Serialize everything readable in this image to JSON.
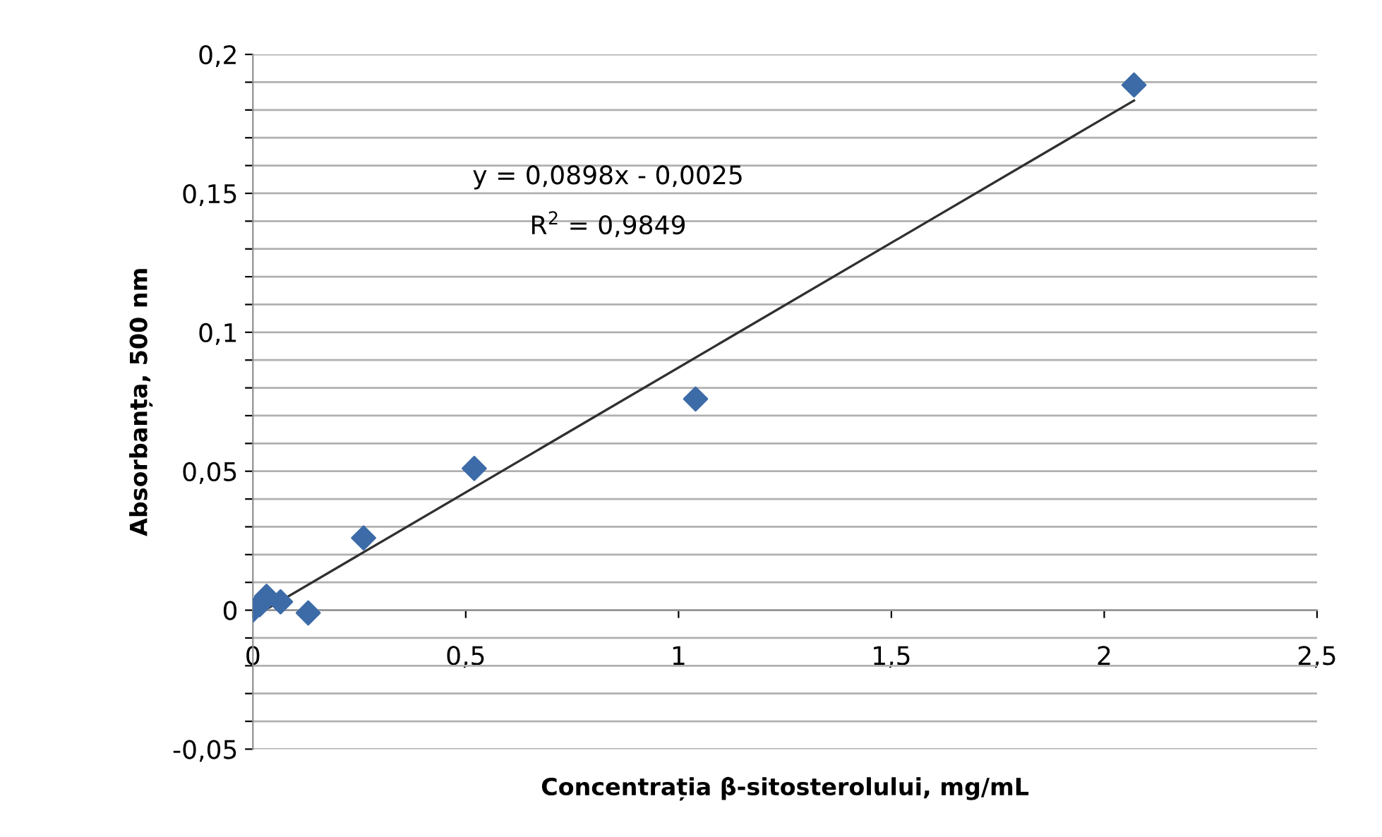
{
  "chart_data": {
    "type": "scatter",
    "xlabel": "Concentrația β-sitosterolului, mg/mL",
    "ylabel": "Absorbanța, 500 nm",
    "annotations": [
      "y = 0,0898x - 0,0025",
      "R$^{2}$ = 0,9849"
    ],
    "xlim": [
      0,
      2.5
    ],
    "ylim": [
      -0.05,
      0.2
    ],
    "xticks": [
      0,
      {
        "value": 0.5,
        "label": "0,5"
      },
      1,
      {
        "value": 1.5,
        "label": "1,5"
      },
      2,
      {
        "value": 2.5,
        "label": "2,5"
      }
    ],
    "yticks": [
      {
        "value": -0.05,
        "label": "-0,05"
      },
      {
        "value": -0.04,
        "label": null
      },
      {
        "value": -0.03,
        "label": null
      },
      {
        "value": -0.02,
        "label": null
      },
      {
        "value": -0.01,
        "label": null
      },
      0,
      {
        "value": 0.01,
        "label": null
      },
      {
        "value": 0.02,
        "label": null
      },
      {
        "value": 0.03,
        "label": null
      },
      {
        "value": 0.04,
        "label": null
      },
      {
        "value": 0.05,
        "label": "0,05"
      },
      {
        "value": 0.06,
        "label": null
      },
      {
        "value": 0.07,
        "label": null
      },
      {
        "value": 0.08,
        "label": null
      },
      {
        "value": 0.09,
        "label": null
      },
      {
        "value": 0.1,
        "label": "0,1"
      },
      {
        "value": 0.11,
        "label": null
      },
      {
        "value": 0.12,
        "label": null
      },
      {
        "value": 0.13,
        "label": null
      },
      {
        "value": 0.14,
        "label": null
      },
      {
        "value": 0.15,
        "label": "0,15"
      },
      {
        "value": 0.16,
        "label": null
      },
      {
        "value": 0.17,
        "label": null
      },
      {
        "value": 0.18,
        "label": null
      },
      {
        "value": 0.19,
        "label": null
      },
      {
        "value": 0.2,
        "label": "0,2"
      }
    ],
    "grid": "y",
    "marker": "diamond",
    "series": [
      {
        "color": "#3c6ba8",
        "x": [
          0,
          0.016,
          0.032,
          0.065,
          0.13,
          0.26,
          0.52,
          1.04,
          2.07
        ],
        "values": [
          0,
          0.002,
          0.005,
          0.003,
          -0.001,
          0.026,
          0.051,
          0.076,
          0.189
        ]
      },
      {
        "type": "line",
        "color": "#303030",
        "marker": "none",
        "x": [
          0,
          2.07
        ],
        "values": [
          -0.0025,
          0.1834
        ]
      }
    ]
  }
}
